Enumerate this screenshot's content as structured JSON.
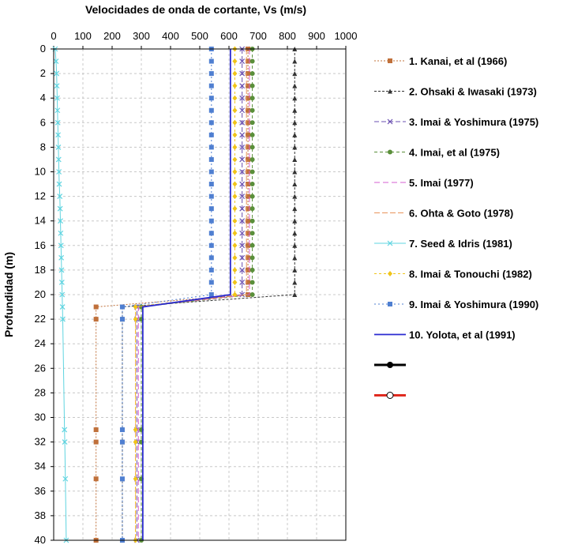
{
  "chart_data": {
    "type": "line",
    "title": "Velocidades de onda de cortante, Vs (m/s)",
    "xlabel": "Velocidades de onda de cortante, Vs (m/s)",
    "ylabel": "Profundidad (m)",
    "xlim": [
      0,
      1000
    ],
    "ylim": [
      0,
      40
    ],
    "y_reversed": true,
    "x_axis_position": "top",
    "x_ticks": [
      0,
      100,
      200,
      300,
      400,
      500,
      600,
      700,
      800,
      900,
      1000
    ],
    "y_ticks": [
      0,
      2,
      4,
      6,
      8,
      10,
      12,
      14,
      16,
      18,
      20,
      22,
      24,
      26,
      28,
      30,
      32,
      34,
      36,
      38,
      40
    ],
    "grid": true,
    "legend_position": "right",
    "series": [
      {
        "name": "1. Kanai, et al (1966)",
        "color": "#c0703a",
        "dash": "2,2",
        "marker": "square",
        "points": [
          [
            665,
            0
          ],
          [
            665,
            1
          ],
          [
            665,
            2
          ],
          [
            665,
            3
          ],
          [
            665,
            4
          ],
          [
            665,
            5
          ],
          [
            665,
            6
          ],
          [
            665,
            7
          ],
          [
            665,
            8
          ],
          [
            665,
            9
          ],
          [
            665,
            10
          ],
          [
            665,
            11
          ],
          [
            665,
            12
          ],
          [
            665,
            13
          ],
          [
            665,
            14
          ],
          [
            665,
            15
          ],
          [
            665,
            16
          ],
          [
            665,
            17
          ],
          [
            665,
            18
          ],
          [
            665,
            19
          ],
          [
            665,
            20
          ],
          [
            145,
            21
          ],
          [
            145,
            22
          ],
          [
            145,
            31
          ],
          [
            145,
            32
          ],
          [
            145,
            35
          ],
          [
            145,
            40
          ]
        ]
      },
      {
        "name": "2. Ohsaki & Iwasaki (1973)",
        "color": "#333333",
        "dash": "3,2",
        "marker": "triangle",
        "points": [
          [
            825,
            0
          ],
          [
            825,
            1
          ],
          [
            825,
            2
          ],
          [
            825,
            3
          ],
          [
            825,
            4
          ],
          [
            825,
            5
          ],
          [
            825,
            6
          ],
          [
            825,
            7
          ],
          [
            825,
            8
          ],
          [
            825,
            9
          ],
          [
            825,
            10
          ],
          [
            825,
            11
          ],
          [
            825,
            12
          ],
          [
            825,
            13
          ],
          [
            825,
            14
          ],
          [
            825,
            15
          ],
          [
            825,
            16
          ],
          [
            825,
            17
          ],
          [
            825,
            18
          ],
          [
            825,
            19
          ],
          [
            825,
            20
          ],
          [
            235,
            21
          ],
          [
            235,
            22
          ],
          [
            235,
            31
          ],
          [
            235,
            32
          ],
          [
            235,
            35
          ],
          [
            235,
            40
          ]
        ]
      },
      {
        "name": "3. Imai & Yoshimura (1975)",
        "color": "#6a4fb0",
        "dash": "6,3",
        "marker": "x",
        "points": [
          [
            645,
            0
          ],
          [
            645,
            1
          ],
          [
            645,
            2
          ],
          [
            645,
            3
          ],
          [
            645,
            4
          ],
          [
            645,
            5
          ],
          [
            645,
            6
          ],
          [
            645,
            7
          ],
          [
            645,
            8
          ],
          [
            645,
            9
          ],
          [
            645,
            10
          ],
          [
            645,
            11
          ],
          [
            645,
            12
          ],
          [
            645,
            13
          ],
          [
            645,
            14
          ],
          [
            645,
            15
          ],
          [
            645,
            16
          ],
          [
            645,
            17
          ],
          [
            645,
            18
          ],
          [
            645,
            19
          ],
          [
            645,
            20
          ],
          [
            285,
            21
          ],
          [
            285,
            22
          ],
          [
            285,
            31
          ],
          [
            285,
            32
          ],
          [
            285,
            35
          ],
          [
            285,
            40
          ]
        ]
      },
      {
        "name": "4. Imai, et al (1975)",
        "color": "#5a8f3a",
        "dash": "4,3",
        "marker": "circle",
        "points": [
          [
            680,
            0
          ],
          [
            680,
            1
          ],
          [
            680,
            2
          ],
          [
            680,
            3
          ],
          [
            680,
            4
          ],
          [
            680,
            5
          ],
          [
            680,
            6
          ],
          [
            680,
            7
          ],
          [
            680,
            8
          ],
          [
            680,
            9
          ],
          [
            680,
            10
          ],
          [
            680,
            11
          ],
          [
            680,
            12
          ],
          [
            680,
            13
          ],
          [
            680,
            14
          ],
          [
            680,
            15
          ],
          [
            680,
            16
          ],
          [
            680,
            17
          ],
          [
            680,
            18
          ],
          [
            680,
            19
          ],
          [
            680,
            20
          ],
          [
            300,
            21
          ],
          [
            300,
            22
          ],
          [
            300,
            31
          ],
          [
            300,
            32
          ],
          [
            300,
            35
          ],
          [
            300,
            40
          ]
        ]
      },
      {
        "name": "5. Imai (1977)",
        "color": "#d65fd1",
        "dash": "7,4",
        "marker": "none",
        "points": [
          [
            670,
            0
          ],
          [
            670,
            20
          ],
          [
            290,
            21
          ],
          [
            290,
            40
          ]
        ]
      },
      {
        "name": "6. Ohta & Goto (1978)",
        "color": "#e8935a",
        "dash": "7,3",
        "marker": "none",
        "points": [
          [
            660,
            0
          ],
          [
            660,
            20
          ],
          [
            280,
            21
          ],
          [
            280,
            40
          ]
        ]
      },
      {
        "name": "7. Seed & Idris (1981)",
        "color": "#5fd4e0",
        "dash": "",
        "marker": "x",
        "points": [
          [
            5,
            0
          ],
          [
            8,
            1
          ],
          [
            10,
            2
          ],
          [
            11,
            3
          ],
          [
            12,
            4
          ],
          [
            13,
            5
          ],
          [
            14,
            6
          ],
          [
            15,
            7
          ],
          [
            16,
            8
          ],
          [
            17,
            9
          ],
          [
            18,
            10
          ],
          [
            19,
            11
          ],
          [
            21,
            12
          ],
          [
            22,
            13
          ],
          [
            23,
            14
          ],
          [
            24,
            15
          ],
          [
            25,
            16
          ],
          [
            26,
            17
          ],
          [
            27,
            18
          ],
          [
            28,
            19
          ],
          [
            29,
            20
          ],
          [
            30,
            21
          ],
          [
            31,
            22
          ],
          [
            37,
            31
          ],
          [
            38,
            32
          ],
          [
            40,
            35
          ],
          [
            43,
            40
          ]
        ]
      },
      {
        "name": "8. Imai & Tonouchi (1982)",
        "color": "#f0c419",
        "dash": "3,3",
        "marker": "diamond",
        "points": [
          [
            620,
            0
          ],
          [
            620,
            1
          ],
          [
            620,
            2
          ],
          [
            620,
            3
          ],
          [
            620,
            4
          ],
          [
            620,
            5
          ],
          [
            620,
            6
          ],
          [
            620,
            7
          ],
          [
            620,
            8
          ],
          [
            620,
            9
          ],
          [
            620,
            10
          ],
          [
            620,
            11
          ],
          [
            620,
            12
          ],
          [
            620,
            13
          ],
          [
            620,
            14
          ],
          [
            620,
            15
          ],
          [
            620,
            16
          ],
          [
            620,
            17
          ],
          [
            620,
            18
          ],
          [
            620,
            19
          ],
          [
            620,
            20
          ],
          [
            280,
            21
          ],
          [
            280,
            22
          ],
          [
            280,
            31
          ],
          [
            280,
            32
          ],
          [
            280,
            35
          ],
          [
            280,
            40
          ]
        ]
      },
      {
        "name": "9. Imai & Yoshimura (1990)",
        "color": "#4f7fd1",
        "dash": "2,3",
        "marker": "square",
        "points": [
          [
            540,
            0
          ],
          [
            540,
            1
          ],
          [
            540,
            2
          ],
          [
            540,
            3
          ],
          [
            540,
            4
          ],
          [
            540,
            5
          ],
          [
            540,
            6
          ],
          [
            540,
            7
          ],
          [
            540,
            8
          ],
          [
            540,
            9
          ],
          [
            540,
            10
          ],
          [
            540,
            11
          ],
          [
            540,
            12
          ],
          [
            540,
            13
          ],
          [
            540,
            14
          ],
          [
            540,
            15
          ],
          [
            540,
            16
          ],
          [
            540,
            17
          ],
          [
            540,
            18
          ],
          [
            540,
            19
          ],
          [
            540,
            20
          ],
          [
            235,
            21
          ],
          [
            235,
            22
          ],
          [
            235,
            31
          ],
          [
            235,
            32
          ],
          [
            235,
            35
          ],
          [
            235,
            40
          ]
        ]
      },
      {
        "name": "10. Yolota, et al (1991)",
        "color": "#2a2ad0",
        "dash": "",
        "marker": "none",
        "points": [
          [
            605,
            0
          ],
          [
            605,
            20
          ],
          [
            305,
            21
          ],
          [
            305,
            40
          ]
        ]
      },
      {
        "name": "",
        "color": "#000000",
        "dash": "",
        "marker": "filled-circle",
        "points": []
      },
      {
        "name": "",
        "color": "#e02b20",
        "dash": "",
        "marker": "open-circle",
        "points": []
      }
    ]
  }
}
